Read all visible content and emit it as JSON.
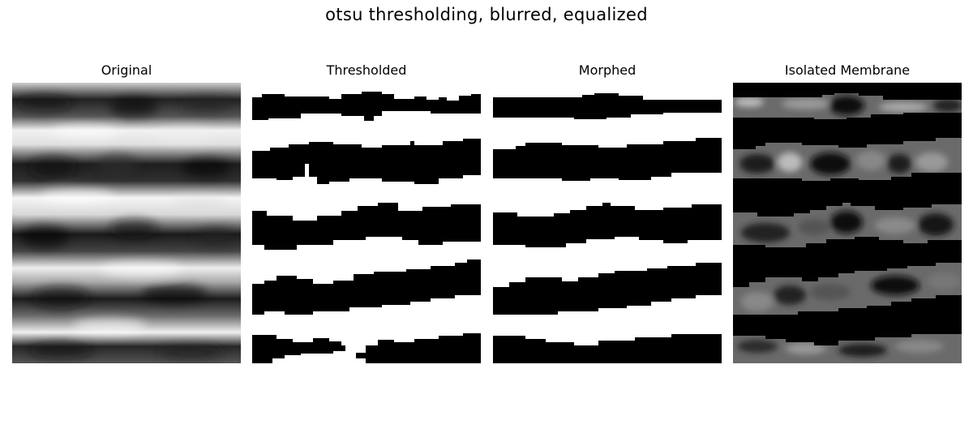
{
  "figure": {
    "title": "otsu thresholding, blurred, equalized"
  },
  "panels": [
    {
      "title": "Original",
      "kind": "grayscale-texture"
    },
    {
      "title": "Thresholded",
      "kind": "binary-mask-raw"
    },
    {
      "title": "Morphed",
      "kind": "binary-mask-cleaned"
    },
    {
      "title": "Isolated Membrane",
      "kind": "masked-grayscale"
    }
  ]
}
